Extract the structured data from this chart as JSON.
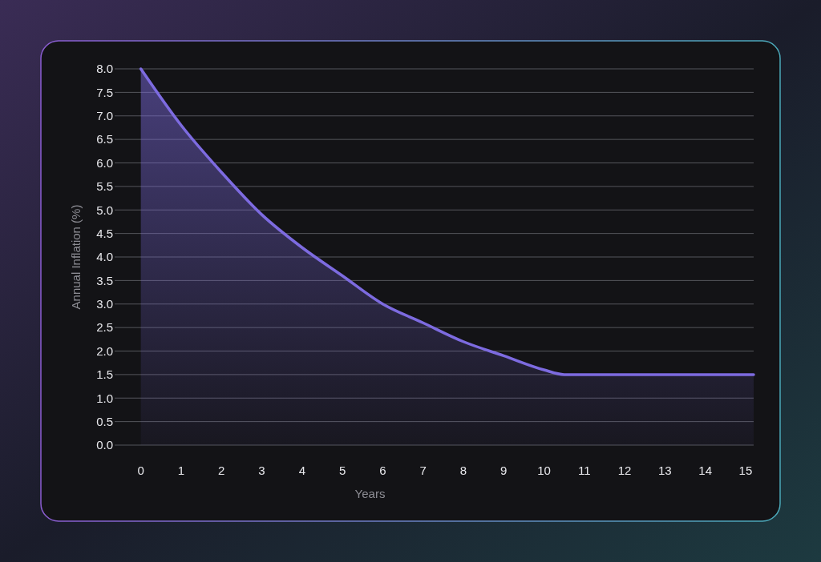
{
  "chart_data": {
    "type": "area",
    "xlabel": "Years",
    "ylabel": "Annual Inflation (%)",
    "x": [
      0,
      1,
      2,
      3,
      4,
      5,
      6,
      7,
      8,
      9,
      10,
      10.5,
      15.2
    ],
    "series": [
      {
        "color": "#7d6be0",
        "values": [
          8.0,
          6.8,
          5.8,
          4.9,
          4.2,
          3.6,
          3.0,
          2.6,
          2.2,
          1.9,
          1.6,
          1.5,
          1.5
        ]
      }
    ],
    "xlim": [
      -0.65,
      15.2
    ],
    "xticks": [
      0,
      1,
      2,
      3,
      4,
      5,
      6,
      7,
      8,
      9,
      10,
      11,
      12,
      13,
      14,
      15
    ],
    "ylim": [
      0,
      8
    ],
    "yticks": [
      {
        "value": 0,
        "label": "0.0"
      },
      {
        "value": 0.5,
        "label": "0.5"
      },
      {
        "value": 1,
        "label": "1.0"
      },
      {
        "value": 1.5,
        "label": "1.5"
      },
      {
        "value": 2,
        "label": "2.0"
      },
      {
        "value": 2.5,
        "label": "2.5"
      },
      {
        "value": 3,
        "label": "3.0"
      },
      {
        "value": 3.5,
        "label": "3.5"
      },
      {
        "value": 4,
        "label": "4.0"
      },
      {
        "value": 4.5,
        "label": "4.5"
      },
      {
        "value": 5,
        "label": "5.0"
      },
      {
        "value": 5.5,
        "label": "5.5"
      },
      {
        "value": 6,
        "label": "6.0"
      },
      {
        "value": 6.5,
        "label": "6.5"
      },
      {
        "value": 7,
        "label": "7.0"
      },
      {
        "value": 7.5,
        "label": "7.5"
      },
      {
        "value": 8,
        "label": "8.0"
      }
    ],
    "grid": "y"
  }
}
